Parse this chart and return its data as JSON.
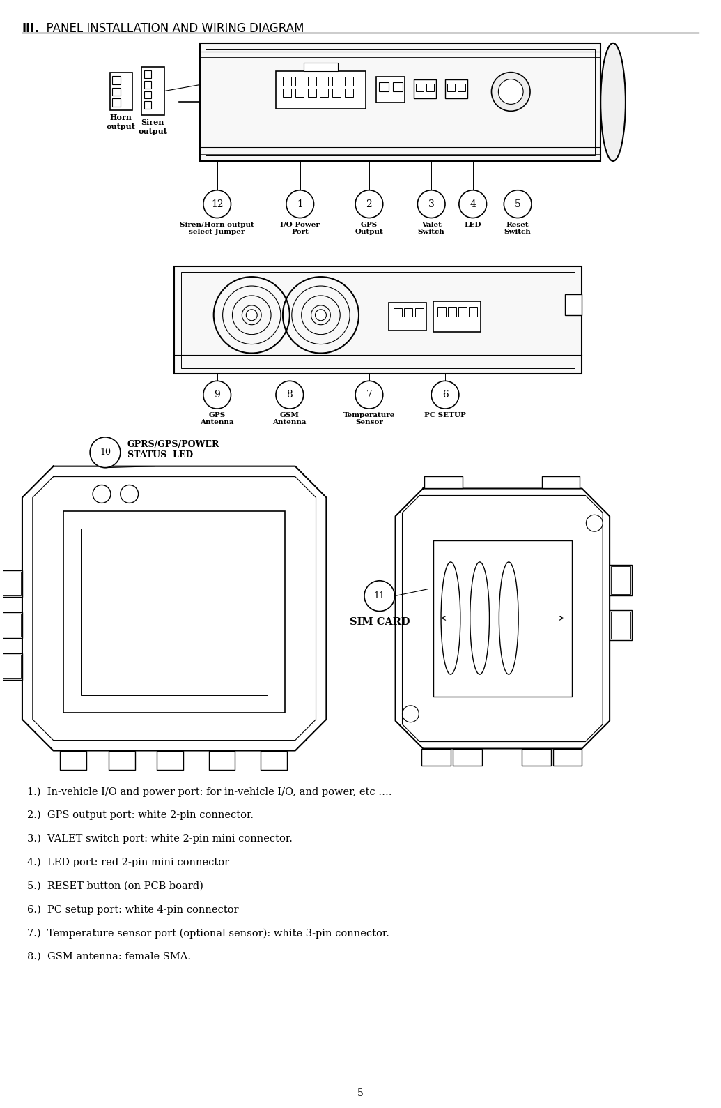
{
  "title_bold": "III.",
  "title_rest": "  PANEL INSTALLATION AND WIRING DIAGRAM",
  "title_fontsize": 12,
  "background_color": "#ffffff",
  "text_color": "#000000",
  "page_number": "5",
  "description_lines": [
    "1.)  In-vehicle I/O and power port: for in-vehicle I/O, and power, etc ….",
    "2.)  GPS output port: white 2-pin connector.",
    "3.)  VALET switch port: white 2-pin mini connector.",
    "4.)  LED port: red 2-pin mini connector",
    "5.)  RESET button (on PCB board)",
    "6.)  PC setup port: white 4-pin connector",
    "7.)  Temperature sensor port (optional sensor): white 3-pin connector.",
    "8.)  GSM antenna: female SMA."
  ]
}
